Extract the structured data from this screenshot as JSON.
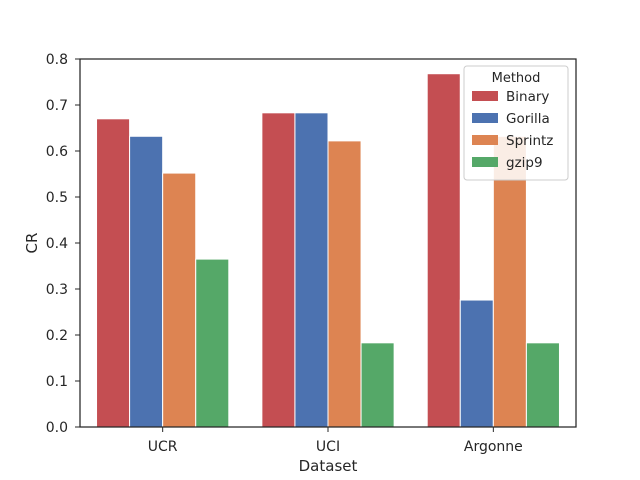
{
  "chart_data": {
    "type": "bar",
    "title": "",
    "xlabel": "Dataset",
    "ylabel": "CR",
    "categories": [
      "UCR",
      "UCI",
      "Argonne"
    ],
    "ylim": [
      0,
      0.8
    ],
    "yticks": [
      "0.0",
      "0.1",
      "0.2",
      "0.3",
      "0.4",
      "0.5",
      "0.6",
      "0.7",
      "0.8"
    ],
    "grid": false,
    "legend": {
      "title": "Method",
      "placement": "top-right"
    },
    "series": [
      {
        "name": "Binary",
        "color": "#c44e52",
        "values": [
          0.67,
          0.683,
          0.768
        ]
      },
      {
        "name": "Gorilla",
        "color": "#4c72b0",
        "values": [
          0.632,
          0.683,
          0.276
        ]
      },
      {
        "name": "Sprintz",
        "color": "#dd8452",
        "values": [
          0.552,
          0.622,
          0.632
        ]
      },
      {
        "name": "gzip9",
        "color": "#55a868",
        "values": [
          0.365,
          0.183,
          0.183
        ]
      }
    ]
  }
}
